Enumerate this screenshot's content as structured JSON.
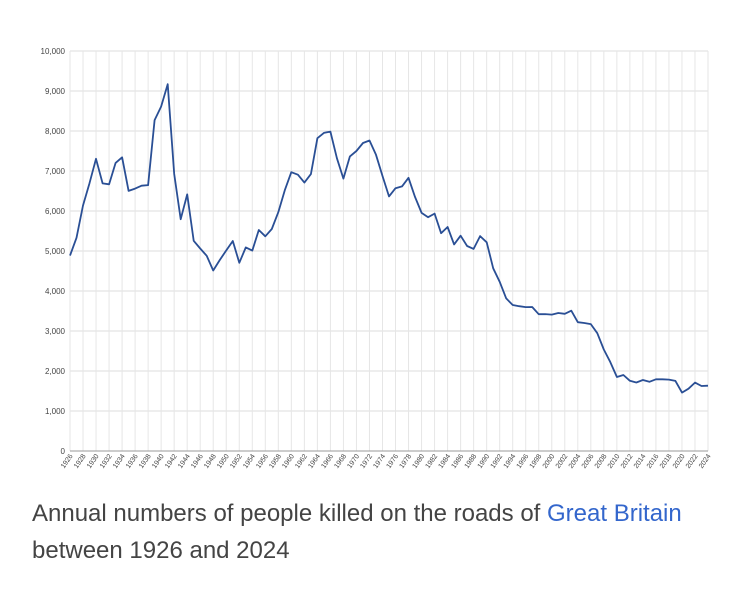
{
  "chart_data": {
    "type": "line",
    "title": "",
    "xlabel": "",
    "ylabel": "",
    "ylim": [
      0,
      10000
    ],
    "xlim": [
      1926,
      2024
    ],
    "grid": true,
    "legend": "none",
    "y_tick_labels": [
      "0",
      "1,000",
      "2,000",
      "3,000",
      "4,000",
      "5,000",
      "6,000",
      "7,000",
      "8,000",
      "9,000",
      "10,000"
    ],
    "x_tick_labels": [
      "1926",
      "1928",
      "1930",
      "1932",
      "1934",
      "1936",
      "1938",
      "1940",
      "1942",
      "1944",
      "1946",
      "1948",
      "1950",
      "1952",
      "1954",
      "1956",
      "1958",
      "1960",
      "1962",
      "1964",
      "1966",
      "1968",
      "1970",
      "1972",
      "1974",
      "1976",
      "1978",
      "1980",
      "1982",
      "1984",
      "1986",
      "1988",
      "1990",
      "1992",
      "1994",
      "1996",
      "1998",
      "2000",
      "2002",
      "2004",
      "2006",
      "2008",
      "2010",
      "2012",
      "2014",
      "2016",
      "2018",
      "2020",
      "2022",
      "2024"
    ],
    "series": [
      {
        "color": "#2a4f95",
        "x": [
          1926,
          1927,
          1928,
          1929,
          1930,
          1931,
          1932,
          1933,
          1934,
          1935,
          1936,
          1937,
          1938,
          1939,
          1940,
          1941,
          1942,
          1943,
          1944,
          1945,
          1946,
          1947,
          1948,
          1949,
          1950,
          1951,
          1952,
          1953,
          1954,
          1955,
          1956,
          1957,
          1958,
          1959,
          1960,
          1961,
          1962,
          1963,
          1964,
          1965,
          1966,
          1967,
          1968,
          1969,
          1970,
          1971,
          1972,
          1973,
          1974,
          1975,
          1976,
          1977,
          1978,
          1979,
          1980,
          1981,
          1982,
          1983,
          1984,
          1985,
          1986,
          1987,
          1988,
          1989,
          1990,
          1991,
          1992,
          1993,
          1994,
          1995,
          1996,
          1997,
          1998,
          1999,
          2000,
          2001,
          2002,
          2003,
          2004,
          2005,
          2006,
          2007,
          2008,
          2009,
          2010,
          2011,
          2012,
          2013,
          2014,
          2015,
          2016,
          2017,
          2018,
          2019,
          2020,
          2021,
          2022,
          2023,
          2024
        ],
        "values": [
          4886,
          5329,
          6138,
          6696,
          7305,
          6691,
          6667,
          7202,
          7343,
          6502,
          6561,
          6633,
          6648,
          8272,
          8609,
          9169,
          6926,
          5796,
          6416,
          5256,
          5062,
          4881,
          4513,
          4773,
          5012,
          5250,
          4706,
          5090,
          5010,
          5526,
          5367,
          5550,
          5970,
          6520,
          6970,
          6908,
          6709,
          6922,
          7820,
          7952,
          7985,
          7319,
          6810,
          7365,
          7499,
          7699,
          7763,
          7406,
          6876,
          6366,
          6570,
          6614,
          6831,
          6352,
          5953,
          5846,
          5934,
          5445,
          5599,
          5165,
          5382,
          5125,
          5052,
          5373,
          5217,
          4568,
          4229,
          3814,
          3650,
          3621,
          3598,
          3599,
          3421,
          3423,
          3409,
          3450,
          3431,
          3508,
          3221,
          3201,
          3172,
          2946,
          2538,
          2222,
          1850,
          1901,
          1754,
          1713,
          1775,
          1730,
          1792,
          1793,
          1784,
          1752,
          1460,
          1558,
          1711,
          1624,
          1633
        ]
      }
    ]
  },
  "caption": {
    "part1": "Annual numbers of people killed on the roads of ",
    "link": "Great Britain",
    "part2": " between 1926 and 2024"
  }
}
